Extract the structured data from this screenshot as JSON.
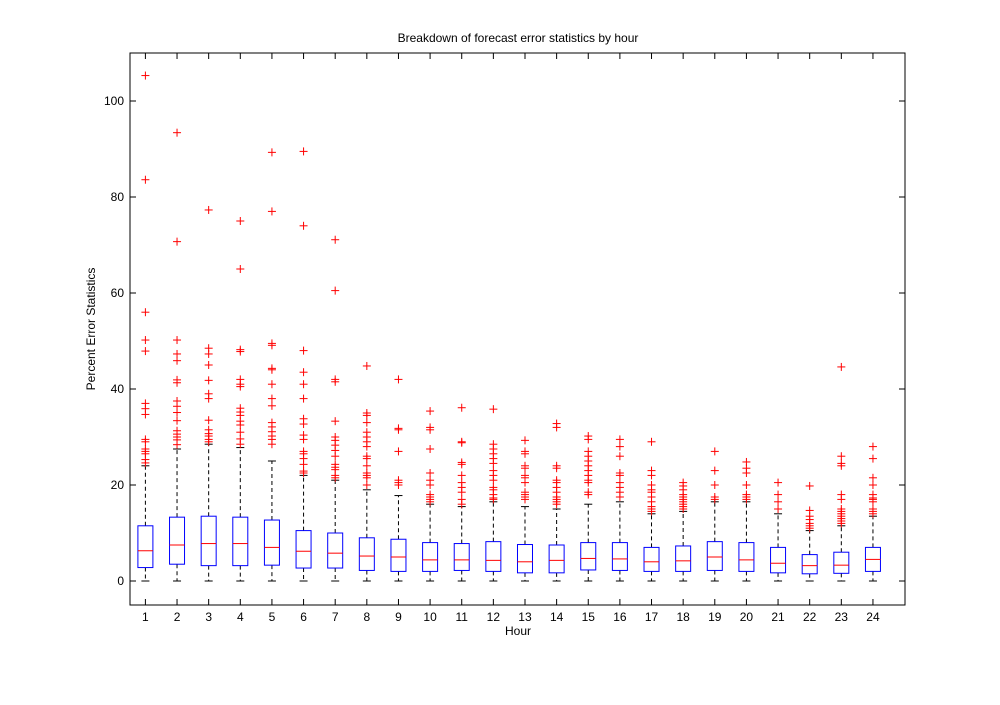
{
  "chart_data": {
    "type": "box",
    "title": "Breakdown of forecast error statistics by hour",
    "xlabel": "Hour",
    "ylabel": "Percent Error Statistics",
    "ylim": [
      -5,
      110
    ],
    "yticks": [
      0,
      20,
      40,
      60,
      80,
      100
    ],
    "grid": false,
    "legend": "none",
    "categories": [
      "1",
      "2",
      "3",
      "4",
      "5",
      "6",
      "7",
      "8",
      "9",
      "10",
      "11",
      "12",
      "13",
      "14",
      "15",
      "16",
      "17",
      "18",
      "19",
      "20",
      "21",
      "22",
      "23",
      "24"
    ],
    "boxes": [
      {
        "hour": "1",
        "min": 0,
        "q1": 2.8,
        "median": 6.3,
        "q3": 11.5,
        "whisker_high": 24.0,
        "outliers": [
          105.3,
          83.6,
          56.0,
          50.2,
          47.9,
          37.0,
          35.9,
          34.7,
          29.5,
          29.0,
          27.5,
          27.0,
          26.5,
          25.3,
          24.6
        ]
      },
      {
        "hour": "2",
        "min": 0,
        "q1": 3.5,
        "median": 7.5,
        "q3": 13.3,
        "whisker_high": 27.5,
        "outliers": [
          93.4,
          70.7,
          50.2,
          47.3,
          45.9,
          41.9,
          41.3,
          37.5,
          36.4,
          35.1,
          33.4,
          31.3,
          30.6,
          30.0,
          29.4,
          28.4
        ]
      },
      {
        "hour": "3",
        "min": 0,
        "q1": 3.2,
        "median": 7.8,
        "q3": 13.5,
        "whisker_high": 28.5,
        "outliers": [
          77.3,
          48.5,
          47.3,
          45.0,
          41.8,
          39.0,
          38.0,
          33.5,
          31.5,
          30.7,
          30.2,
          29.5,
          29.0
        ]
      },
      {
        "hour": "4",
        "min": 0,
        "q1": 3.2,
        "median": 7.8,
        "q3": 13.3,
        "whisker_high": 27.8,
        "outliers": [
          75.0,
          65.0,
          48.2,
          47.8,
          42.0,
          41.0,
          40.5,
          36.0,
          35.2,
          34.5,
          33.3,
          32.5,
          31.0,
          29.6,
          28.5
        ]
      },
      {
        "hour": "5",
        "min": 0,
        "q1": 3.3,
        "median": 7.0,
        "q3": 12.7,
        "whisker_high": 25.0,
        "outliers": [
          89.3,
          77.0,
          49.5,
          49.1,
          44.3,
          44.0,
          41.0,
          38.0,
          36.5,
          33.0,
          32.1,
          31.1,
          30.2,
          29.5,
          28.5
        ]
      },
      {
        "hour": "6",
        "min": 0,
        "q1": 2.7,
        "median": 6.2,
        "q3": 10.5,
        "whisker_high": 22.0,
        "outliers": [
          89.5,
          74.0,
          48.0,
          43.5,
          41.0,
          38.0,
          33.8,
          32.7,
          30.4,
          29.5,
          27.0,
          26.5,
          25.5,
          24.3,
          22.9,
          22.5
        ]
      },
      {
        "hour": "7",
        "min": 0,
        "q1": 2.7,
        "median": 5.8,
        "q3": 10.0,
        "whisker_high": 21.0,
        "outliers": [
          71.1,
          60.5,
          42.0,
          41.5,
          33.3,
          30.0,
          29.3,
          28.3,
          27.2,
          26.0,
          24.3,
          23.7,
          23.2,
          22.0,
          21.5
        ]
      },
      {
        "hour": "8",
        "min": 0,
        "q1": 2.2,
        "median": 5.2,
        "q3": 9.0,
        "whisker_high": 19.0,
        "outliers": [
          44.8,
          35.0,
          34.5,
          33.0,
          31.0,
          30.0,
          29.0,
          28.0,
          26.0,
          25.5,
          24.0,
          22.5,
          22.0,
          21.5,
          20.0
        ]
      },
      {
        "hour": "9",
        "min": 0,
        "q1": 2.0,
        "median": 5.0,
        "q3": 8.7,
        "whisker_high": 17.8,
        "outliers": [
          42.0,
          31.8,
          31.5,
          27.0,
          21.0,
          20.5,
          20.0
        ]
      },
      {
        "hour": "10",
        "min": 0,
        "q1": 2.0,
        "median": 4.4,
        "q3": 8.0,
        "whisker_high": 16.0,
        "outliers": [
          35.4,
          32.0,
          31.5,
          27.5,
          22.5,
          21.0,
          20.0,
          18.0,
          17.5,
          17.0,
          16.5
        ]
      },
      {
        "hour": "11",
        "min": 0,
        "q1": 2.2,
        "median": 4.4,
        "q3": 7.8,
        "whisker_high": 15.5,
        "outliers": [
          36.1,
          29.0,
          28.8,
          24.7,
          24.3,
          22.0,
          20.5,
          19.5,
          18.5,
          17.0,
          16.0
        ]
      },
      {
        "hour": "12",
        "min": 0,
        "q1": 2.0,
        "median": 4.3,
        "q3": 8.2,
        "whisker_high": 16.5,
        "outliers": [
          35.8,
          28.5,
          27.5,
          26.5,
          25.5,
          24.5,
          23.0,
          22.0,
          21.0,
          19.5,
          19.0,
          18.0,
          17.3,
          17.0
        ]
      },
      {
        "hour": "13",
        "min": 0,
        "q1": 1.7,
        "median": 4.0,
        "q3": 7.6,
        "whisker_high": 15.5,
        "outliers": [
          29.3,
          27.0,
          26.5,
          24.0,
          23.5,
          22.0,
          21.5,
          20.5,
          18.5,
          18.0,
          17.5,
          17.0
        ]
      },
      {
        "hour": "14",
        "min": 0,
        "q1": 1.7,
        "median": 4.3,
        "q3": 7.5,
        "whisker_high": 15.0,
        "outliers": [
          32.8,
          32.0,
          24.0,
          23.5,
          21.0,
          20.5,
          19.5,
          18.5,
          17.5,
          17.0,
          16.5,
          16.0
        ]
      },
      {
        "hour": "15",
        "min": 0,
        "q1": 2.3,
        "median": 4.7,
        "q3": 8.0,
        "whisker_high": 16.0,
        "outliers": [
          30.2,
          29.5,
          27.0,
          26.0,
          25.0,
          24.0,
          23.0,
          22.0,
          21.0,
          20.5,
          18.5,
          18.0
        ]
      },
      {
        "hour": "16",
        "min": 0,
        "q1": 2.2,
        "median": 4.6,
        "q3": 8.0,
        "whisker_high": 16.5,
        "outliers": [
          29.5,
          28.0,
          26.0,
          22.5,
          22.0,
          20.5,
          19.5,
          18.5,
          17.5
        ]
      },
      {
        "hour": "17",
        "min": 0,
        "q1": 2.0,
        "median": 4.0,
        "q3": 7.0,
        "whisker_high": 14.0,
        "outliers": [
          29.0,
          23.0,
          22.0,
          20.0,
          19.0,
          18.5,
          17.5,
          16.5,
          15.5,
          15.0,
          14.5
        ]
      },
      {
        "hour": "18",
        "min": 0,
        "q1": 2.0,
        "median": 4.2,
        "q3": 7.3,
        "whisker_high": 14.5,
        "outliers": [
          20.5,
          19.8,
          19.0,
          18.0,
          17.5,
          17.0,
          16.5,
          16.0,
          15.5,
          15.0
        ]
      },
      {
        "hour": "19",
        "min": 0,
        "q1": 2.2,
        "median": 5.0,
        "q3": 8.2,
        "whisker_high": 16.5,
        "outliers": [
          27.0,
          23.0,
          20.0,
          17.5,
          17.0
        ]
      },
      {
        "hour": "20",
        "min": 0,
        "q1": 2.0,
        "median": 4.4,
        "q3": 8.0,
        "whisker_high": 16.5,
        "outliers": [
          24.8,
          23.5,
          22.5,
          20.0,
          18.0,
          17.5,
          17.0
        ]
      },
      {
        "hour": "21",
        "min": 0,
        "q1": 1.7,
        "median": 3.7,
        "q3": 7.0,
        "whisker_high": 14.0,
        "outliers": [
          20.5,
          18.0,
          16.5,
          15.0
        ]
      },
      {
        "hour": "22",
        "min": 0,
        "q1": 1.5,
        "median": 3.2,
        "q3": 5.5,
        "whisker_high": 10.5,
        "outliers": [
          19.8,
          14.7,
          13.5,
          12.8,
          12.0,
          11.5,
          11.0
        ]
      },
      {
        "hour": "23",
        "min": 0,
        "q1": 1.6,
        "median": 3.3,
        "q3": 6.0,
        "whisker_high": 11.5,
        "outliers": [
          44.6,
          26.0,
          24.5,
          24.0,
          18.0,
          17.0,
          15.0,
          14.5,
          14.0,
          13.5,
          13.0,
          12.5,
          12.0
        ]
      },
      {
        "hour": "24",
        "min": 0,
        "q1": 2.0,
        "median": 4.5,
        "q3": 7.0,
        "whisker_high": 13.5,
        "outliers": [
          28.0,
          25.5,
          21.5,
          20.0,
          18.0,
          17.3,
          17.0,
          16.5,
          15.0,
          14.5,
          14.0
        ]
      }
    ]
  },
  "colors": {
    "box": "#0000ff",
    "median": "#ff0000",
    "outlier": "#ff0000",
    "whisker": "#000000",
    "axes": "#000000"
  }
}
